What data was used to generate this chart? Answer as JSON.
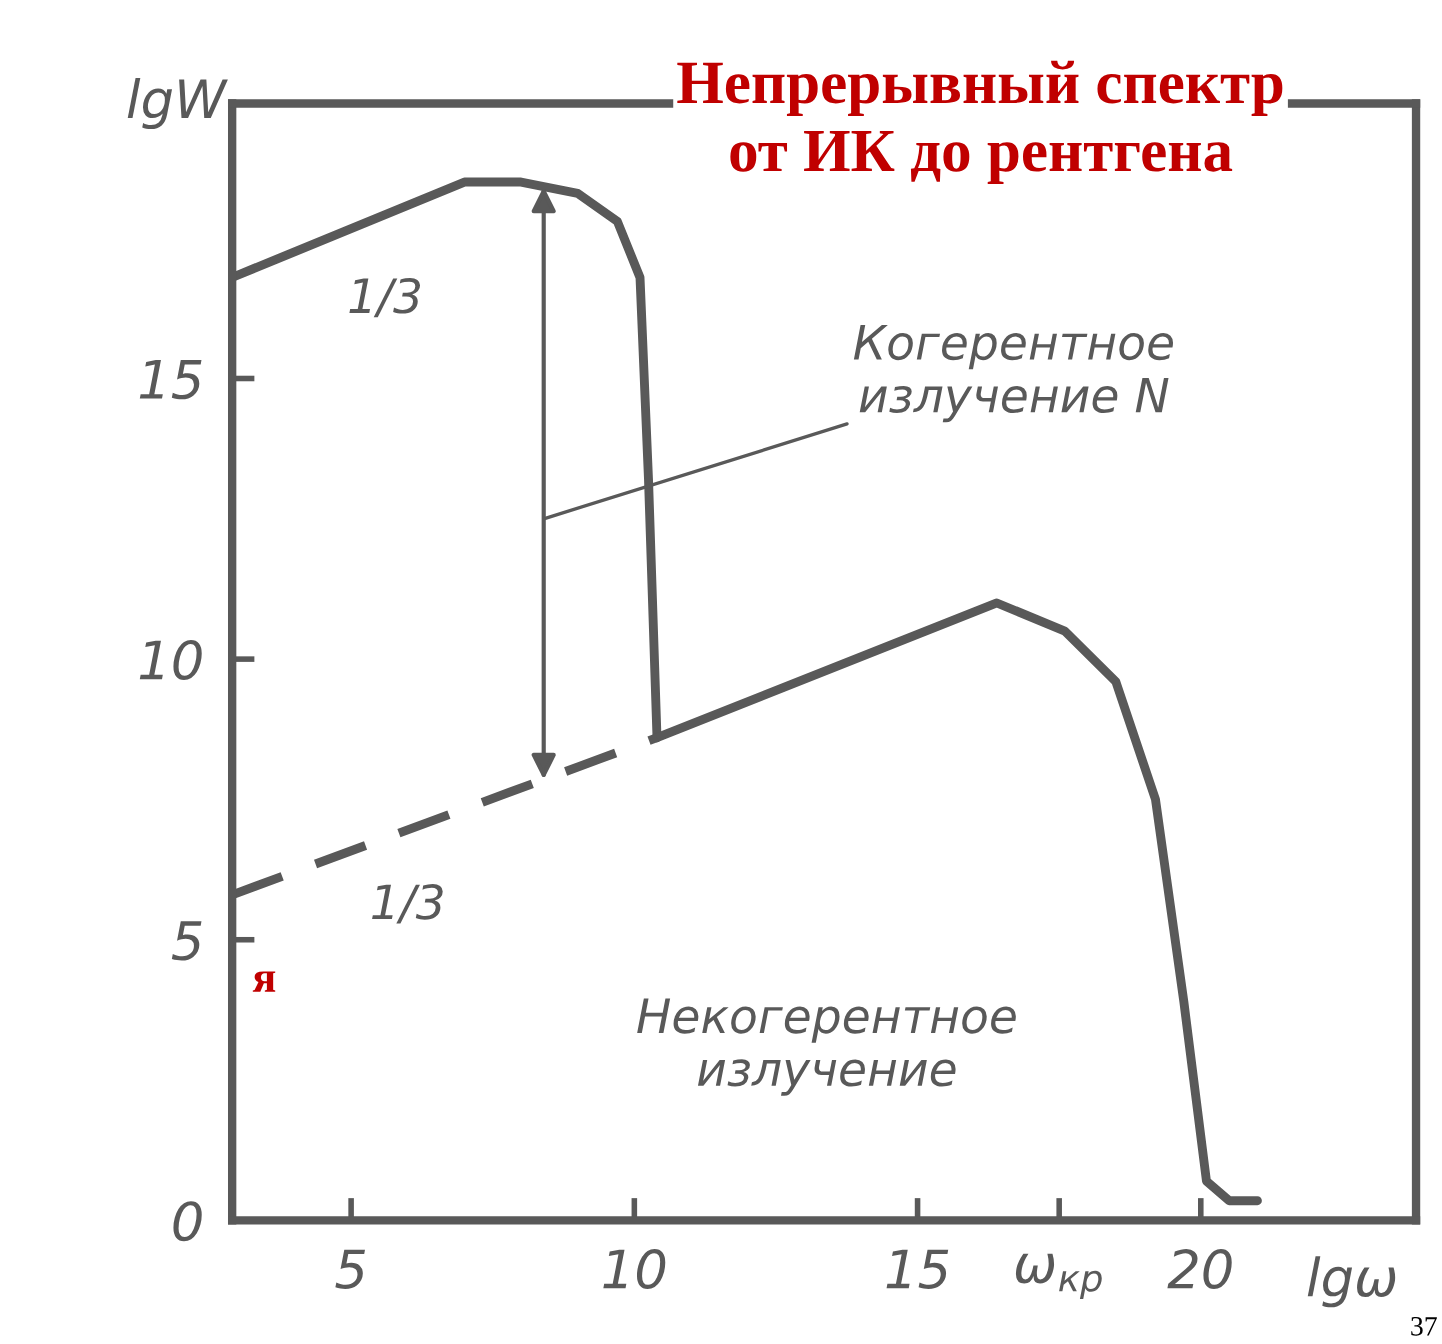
{
  "chart_data": {
    "type": "line",
    "title": "Непрерывный спектр\nот ИК до рентгена",
    "ylabel": "lgW",
    "xlabel": "lgω",
    "xlim": [
      2.9,
      23.8
    ],
    "ylim": [
      0,
      19.9
    ],
    "xticks": [
      5,
      10,
      15,
      {
        "value": 17.5,
        "label": "ω$_{кр}$"
      },
      20
    ],
    "yticks": [
      0,
      5,
      10,
      15
    ],
    "grid": false,
    "legend": false,
    "series": [
      {
        "color": "#595959",
        "line_style": "solid",
        "x": [
          2.9,
          7.0,
          8.0,
          9.0,
          9.7,
          10.1,
          10.25,
          10.4
        ],
        "values": [
          16.8,
          18.5,
          18.5,
          18.3,
          17.8,
          16.8,
          13.2,
          8.6
        ]
      },
      {
        "color": "#595959",
        "line_style": "solid",
        "x": [
          10.4,
          16.4,
          17.6,
          18.5,
          19.2,
          19.7,
          20.1,
          20.5,
          21.0
        ],
        "values": [
          8.6,
          11.0,
          10.5,
          9.6,
          7.5,
          3.9,
          0.7,
          0.35,
          0.35
        ]
      },
      {
        "color": "#595959",
        "line_style": "dashed",
        "x": [
          2.9,
          10.4
        ],
        "values": [
          5.8,
          8.6
        ]
      }
    ],
    "annotations": [
      "Когерентное\nизлучение N",
      "1/3",
      "1/3",
      "Некогерентное\nизлучение",
      "37",
      "я"
    ]
  }
}
